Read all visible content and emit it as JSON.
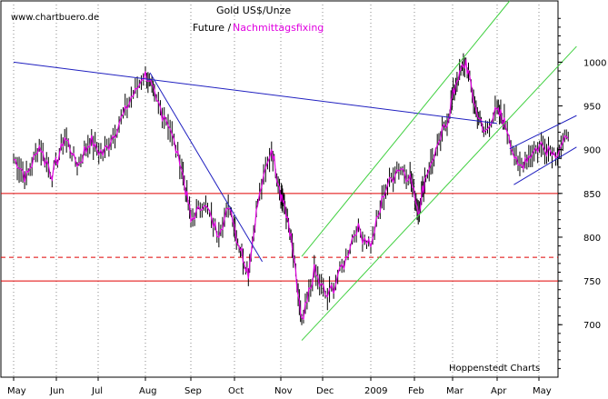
{
  "chart_data": {
    "type": "line",
    "title": "Gold US$/Unze",
    "subtitle_part1": "Future /",
    "subtitle_part2": "Nachmittagsfixing",
    "watermark": "www.chartbuero.de",
    "source": "Hoppenstedt Charts",
    "ylim": [
      640,
      1070
    ],
    "y_ticks": [
      "1000",
      "950",
      "900",
      "850",
      "800",
      "750",
      "700"
    ],
    "y_tick_values": [
      1000,
      950,
      900,
      850,
      800,
      750,
      700
    ],
    "x_ticks": [
      "May",
      "Jun",
      "Jul",
      "Aug",
      "Sep",
      "Oct",
      "Nov",
      "Dec",
      "2009",
      "Feb",
      "Mar",
      "Apr",
      "May"
    ],
    "grid": "vertical-dotted",
    "colors": {
      "future": "#000000",
      "fixing": "#e000e0",
      "horizontal_levels": "#e00000",
      "trendlines": "#2020c0",
      "channels": "#40d040"
    },
    "horizontal_levels": [
      {
        "value": 850,
        "style": "solid"
      },
      {
        "value": 777,
        "style": "dashed"
      },
      {
        "value": 750,
        "style": "solid"
      }
    ],
    "price_path": [
      [
        0,
        890
      ],
      [
        0.3,
        868
      ],
      [
        0.6,
        905
      ],
      [
        0.9,
        870
      ],
      [
        1.2,
        915
      ],
      [
        1.5,
        882
      ],
      [
        1.8,
        910
      ],
      [
        2.1,
        895
      ],
      [
        2.4,
        925
      ],
      [
        2.7,
        960
      ],
      [
        3.0,
        988
      ],
      [
        3.2,
        960
      ],
      [
        3.5,
        930
      ],
      [
        3.8,
        880
      ],
      [
        4.0,
        820
      ],
      [
        4.3,
        840
      ],
      [
        4.6,
        805
      ],
      [
        4.9,
        835
      ],
      [
        5.1,
        790
      ],
      [
        5.3,
        760
      ],
      [
        5.5,
        840
      ],
      [
        5.8,
        900
      ],
      [
        6.0,
        850
      ],
      [
        6.1,
        835
      ],
      [
        6.3,
        780
      ],
      [
        6.5,
        700
      ],
      [
        6.8,
        760
      ],
      [
        7.1,
        730
      ],
      [
        7.4,
        765
      ],
      [
        7.7,
        810
      ],
      [
        8.0,
        790
      ],
      [
        8.3,
        850
      ],
      [
        8.6,
        880
      ],
      [
        8.9,
        870
      ],
      [
        9.1,
        830
      ],
      [
        9.3,
        870
      ],
      [
        9.6,
        900
      ],
      [
        9.9,
        940
      ],
      [
        10.1,
        980
      ],
      [
        10.3,
        1000
      ],
      [
        10.5,
        950
      ],
      [
        10.7,
        920
      ],
      [
        11.0,
        945
      ],
      [
        11.2,
        930
      ],
      [
        11.5,
        880
      ],
      [
        11.8,
        895
      ],
      [
        12.1,
        905
      ],
      [
        12.4,
        895
      ],
      [
        12.7,
        915
      ]
    ],
    "trendlines": [
      {
        "x1": 0,
        "y1": 1000,
        "x2": 11.0,
        "y2": 930
      },
      {
        "x1": 3.1,
        "y1": 988,
        "x2": 5.6,
        "y2": 772
      },
      {
        "x1": 11.3,
        "y1": 901,
        "x2": 12.9,
        "y2": 939
      },
      {
        "x1": 11.4,
        "y1": 860,
        "x2": 12.9,
        "y2": 903
      }
    ],
    "channels": [
      {
        "x1": 6.5,
        "y1": 778,
        "x2": 11.3,
        "y2": 1070
      },
      {
        "x1": 6.5,
        "y1": 682,
        "x2": 12.9,
        "y2": 1018
      }
    ]
  }
}
